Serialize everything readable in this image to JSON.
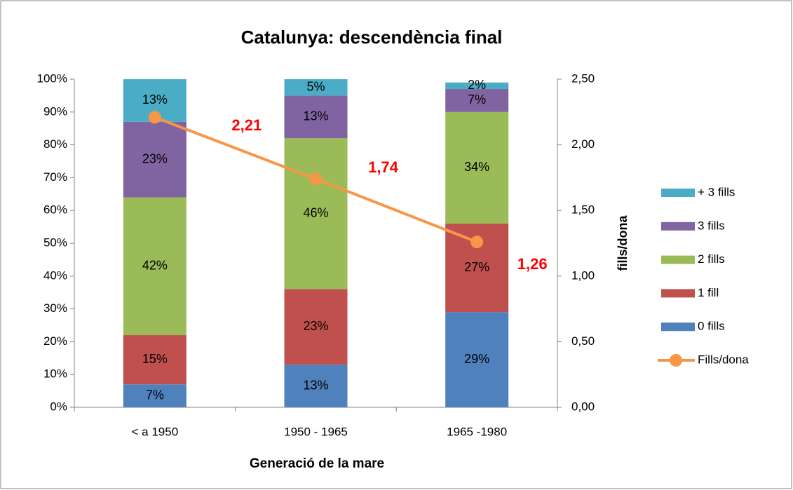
{
  "chart_data": {
    "type": "bar",
    "stacked": true,
    "title": "Catalunya: descendència final",
    "x_label": "Generació de la mare",
    "y2_label": "fills/dona",
    "categories": [
      "< a 1950",
      "1950 - 1965",
      "1965 -1980"
    ],
    "series": [
      {
        "name": "0 fills",
        "color": "#4f81bd",
        "values": [
          7,
          13,
          29
        ],
        "value_labels": [
          "7%",
          "13%",
          "29%"
        ]
      },
      {
        "name": "1 fill",
        "color": "#c0504d",
        "values": [
          15,
          23,
          27
        ],
        "value_labels": [
          "15%",
          "23%",
          "27%"
        ]
      },
      {
        "name": "2 fills",
        "color": "#9bbb59",
        "values": [
          42,
          46,
          34
        ],
        "value_labels": [
          "42%",
          "46%",
          "34%"
        ]
      },
      {
        "name": "3 fills",
        "color": "#8064a2",
        "values": [
          23,
          13,
          7
        ],
        "value_labels": [
          "23%",
          "13%",
          "7%"
        ]
      },
      {
        "name": "+ 3 fills",
        "color": "#4bacc6",
        "values": [
          13,
          5,
          2
        ],
        "value_labels": [
          "13%",
          "5%",
          "2%"
        ]
      },
      {
        "name": "Fills/dona",
        "color": "#f79646",
        "type": "line",
        "axis": "y2",
        "values": [
          2.21,
          1.74,
          1.26
        ],
        "value_labels": [
          "2,21",
          "1,74",
          "1,26"
        ],
        "label_color": "#ff0000"
      }
    ],
    "ylim": [
      0,
      100
    ],
    "yticks": [
      {
        "value": 0,
        "label": "0%"
      },
      {
        "value": 10,
        "label": "10%"
      },
      {
        "value": 20,
        "label": "20%"
      },
      {
        "value": 30,
        "label": "30%"
      },
      {
        "value": 40,
        "label": "40%"
      },
      {
        "value": 50,
        "label": "50%"
      },
      {
        "value": 60,
        "label": "60%"
      },
      {
        "value": 70,
        "label": "70%"
      },
      {
        "value": 80,
        "label": "80%"
      },
      {
        "value": 90,
        "label": "90%"
      },
      {
        "value": 100,
        "label": "100%"
      }
    ],
    "y2lim": [
      0,
      2.5
    ],
    "y2ticks": [
      {
        "value": 0,
        "label": "0,00"
      },
      {
        "value": 0.5,
        "label": "0,50"
      },
      {
        "value": 1,
        "label": "1,00"
      },
      {
        "value": 1.5,
        "label": "1,50"
      },
      {
        "value": 2,
        "label": "2,00"
      },
      {
        "value": 2.5,
        "label": "2,50"
      }
    ],
    "legend": "right",
    "grid": false
  }
}
